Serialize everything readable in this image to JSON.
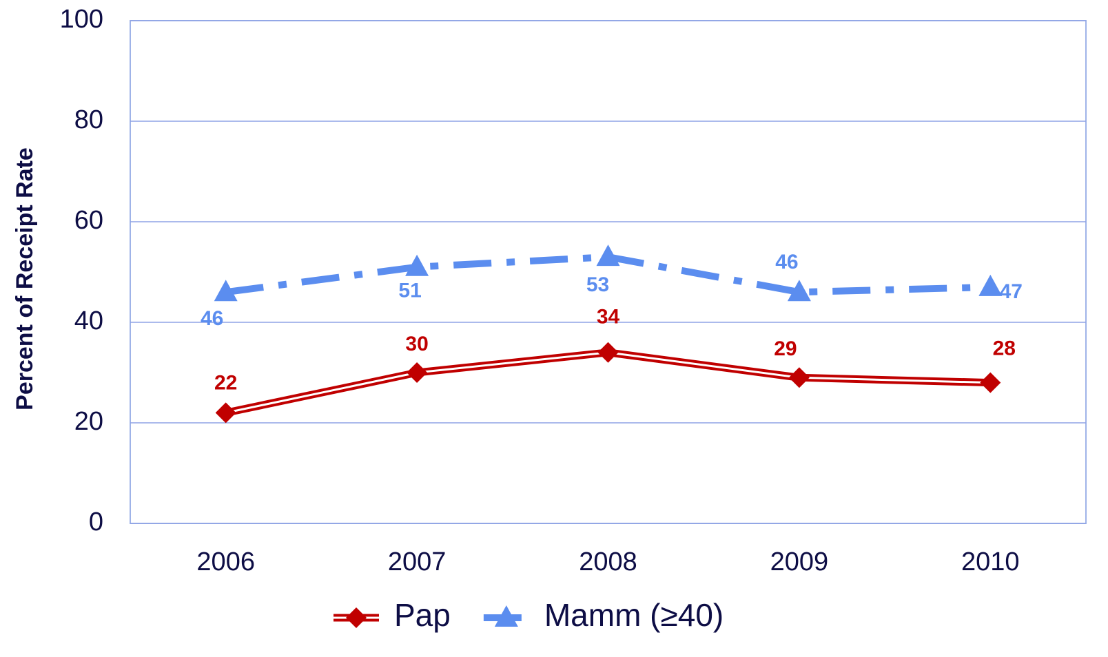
{
  "chart_data": {
    "type": "line",
    "y_label": "Percent of Receipt Rate",
    "categories": [
      "2006",
      "2007",
      "2008",
      "2009",
      "2010"
    ],
    "series": [
      {
        "name": "Pap",
        "color": "#c00000",
        "marker": "diamond",
        "line_style": "double",
        "values": [
          22,
          30,
          34,
          29,
          28
        ]
      },
      {
        "name": "Mamm (≥40)",
        "color": "#5b8def",
        "marker": "triangle",
        "line_style": "dash-dot",
        "values": [
          46,
          51,
          53,
          46,
          47
        ]
      }
    ],
    "ylim": [
      0,
      100
    ],
    "yticks": [
      0,
      20,
      40,
      60,
      80,
      100
    ],
    "grid": true,
    "legend": "bottom"
  }
}
